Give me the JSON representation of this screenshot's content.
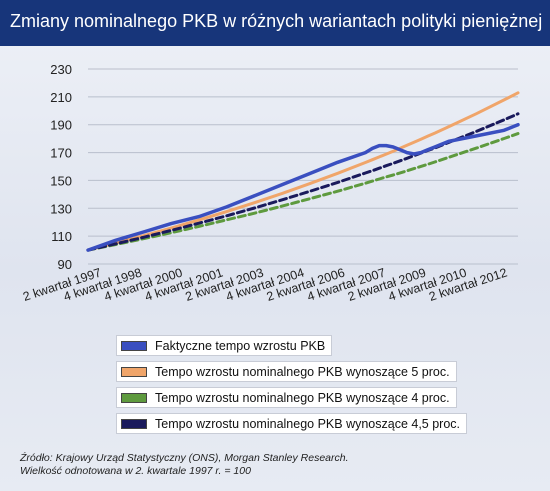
{
  "title": "Zmiany nominalnego PKB w różnych wariantach polityki pieniężnej",
  "chart_data": {
    "type": "line",
    "x": [
      "1997Q2",
      "1998Q2",
      "1999Q2",
      "2000Q2",
      "2001Q2",
      "2002Q2",
      "2003Q2",
      "2004Q2",
      "2005Q2",
      "2006Q2",
      "2007Q2",
      "2007Q3",
      "2007Q4",
      "2008Q1",
      "2008Q2",
      "2008Q3",
      "2008Q4",
      "2009Q1",
      "2009Q2",
      "2009Q3",
      "2009Q4",
      "2010Q2",
      "2011Q2",
      "2012Q2",
      "2012Q4"
    ],
    "x_tick_labels": [
      "2 kwartał 1997",
      "4 kwartał 1998",
      "4 kwartał 2000",
      "4 kwartał 2001",
      "2 kwartał 2003",
      "4 kwartał 2004",
      "2 kwartał 2006",
      "4 kwartał 2007",
      "2 kwartał 2009",
      "4 kwartał 2010",
      "2 kwartał 2012"
    ],
    "ylim": [
      90,
      230
    ],
    "yticks": [
      90,
      110,
      130,
      150,
      170,
      190,
      210,
      230
    ],
    "grid": true,
    "series": [
      {
        "name": "Faktyczne tempo wzrostu PKB",
        "color": "#3a4fc0",
        "values": [
          100,
          107,
          113,
          119,
          124,
          131,
          139,
          147,
          155,
          163,
          170,
          173,
          175,
          175,
          174,
          172,
          170,
          169,
          170,
          172,
          174,
          178,
          182,
          186,
          190
        ]
      },
      {
        "name": "Tempo wzrostu nominalnego PKB wynoszące 5 proc.",
        "color": "#f0a56a",
        "values": [
          100,
          105,
          110.3,
          115.8,
          121.6,
          127.6,
          134,
          140.7,
          147.7,
          155.1,
          162.9,
          164.9,
          166.9,
          168.9,
          171,
          173.1,
          175.2,
          177.4,
          179.6,
          181.8,
          184,
          188.5,
          197.9,
          207.8,
          212.9
        ]
      },
      {
        "name": "Tempo wzrostu nominalnego PKB wynoszące 4 proc.",
        "color": "#5e9a3e",
        "values": [
          100,
          104,
          108.2,
          112.5,
          117,
          121.7,
          126.5,
          131.6,
          136.9,
          142.3,
          148,
          149.5,
          151,
          152.5,
          153.9,
          155.4,
          156.9,
          158.5,
          160.1,
          161.6,
          163.2,
          166.5,
          173.2,
          180.1,
          183.6
        ]
      },
      {
        "name": "Tempo wzrostu nominalnego PKB wynoszące 4,5 proc.",
        "color": "#1a1a5c",
        "values": [
          100,
          104.5,
          109.2,
          114.1,
          119.3,
          124.6,
          130.2,
          136.1,
          142.2,
          148.6,
          155.3,
          157,
          158.8,
          160.6,
          162.3,
          164.1,
          165.9,
          167.8,
          169.6,
          171.5,
          173.3,
          177.2,
          185.2,
          193.5,
          197.8
        ]
      }
    ]
  },
  "source": {
    "line1": "Źródło: Krajowy Urząd Statystyczny (ONS), Morgan Stanley Research.",
    "line2": "Wielkość odnotowana w 2. kwartale 1997 r. = 100"
  }
}
